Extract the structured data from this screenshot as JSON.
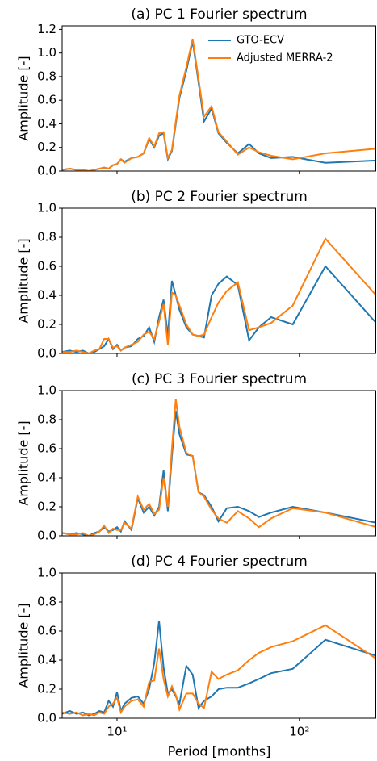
{
  "chart_data": [
    {
      "type": "line",
      "title": "(a) PC 1 Fourier spectrum",
      "ylabel": "Amplitude [-]",
      "log_x": true,
      "legend": "upper right",
      "xlim": [
        5,
        264
      ],
      "ylim": [
        0,
        1.23
      ],
      "yticks": [
        {
          "value": 0,
          "label": "0.0"
        },
        {
          "value": 0.2,
          "label": "0.2"
        },
        {
          "value": 0.4,
          "label": "0.4"
        },
        {
          "value": 0.6,
          "label": "0.6"
        },
        {
          "value": 0.8,
          "label": "0.8"
        },
        {
          "value": 1.0,
          "label": "1.0"
        },
        {
          "value": 1.2,
          "label": "1.2"
        }
      ],
      "x": [
        5,
        5.5,
        6,
        6.5,
        7,
        7.5,
        8,
        8.5,
        9,
        9.5,
        10,
        10.5,
        11,
        12,
        13,
        14,
        15,
        16,
        17,
        18,
        19,
        20,
        21,
        22,
        24,
        26,
        28,
        30,
        33,
        36,
        40,
        46,
        53,
        60,
        70,
        92,
        139,
        264
      ],
      "series": [
        {
          "name": "GTO-ECV",
          "color": "#1f77b4",
          "values": [
            0.01,
            0.02,
            0.01,
            0.01,
            0.0,
            0.01,
            0.02,
            0.03,
            0.02,
            0.05,
            0.06,
            0.1,
            0.08,
            0.11,
            0.12,
            0.15,
            0.27,
            0.2,
            0.3,
            0.32,
            0.1,
            0.17,
            0.4,
            0.62,
            0.85,
            1.1,
            0.75,
            0.42,
            0.53,
            0.32,
            0.24,
            0.15,
            0.23,
            0.15,
            0.11,
            0.12,
            0.07,
            0.09
          ]
        },
        {
          "name": "Adjusted MERRA-2",
          "color": "#ff7f0e",
          "values": [
            0.01,
            0.02,
            0.01,
            0.01,
            0.0,
            0.01,
            0.02,
            0.03,
            0.02,
            0.05,
            0.06,
            0.1,
            0.07,
            0.11,
            0.12,
            0.15,
            0.28,
            0.21,
            0.32,
            0.33,
            0.11,
            0.18,
            0.42,
            0.64,
            0.88,
            1.12,
            0.78,
            0.46,
            0.55,
            0.33,
            0.25,
            0.14,
            0.2,
            0.16,
            0.13,
            0.1,
            0.15,
            0.19
          ]
        }
      ]
    },
    {
      "type": "line",
      "title": "(b) PC 2 Fourier spectrum",
      "ylabel": "Amplitude [-]",
      "log_x": true,
      "xlim": [
        5,
        264
      ],
      "ylim": [
        0,
        1.0
      ],
      "yticks": [
        {
          "value": 0,
          "label": "0.0"
        },
        {
          "value": 0.2,
          "label": "0.2"
        },
        {
          "value": 0.4,
          "label": "0.4"
        },
        {
          "value": 0.6,
          "label": "0.6"
        },
        {
          "value": 0.8,
          "label": "0.8"
        },
        {
          "value": 1.0,
          "label": "1.0"
        }
      ],
      "x": [
        5,
        5.5,
        6,
        6.5,
        7,
        7.5,
        8,
        8.5,
        9,
        9.5,
        10,
        10.5,
        11,
        12,
        13,
        14,
        15,
        16,
        17,
        18,
        19,
        20,
        21,
        22,
        24,
        26,
        28,
        30,
        33,
        36,
        40,
        46,
        53,
        60,
        70,
        92,
        139,
        264
      ],
      "series": [
        {
          "name": "GTO-ECV",
          "color": "#1f77b4",
          "values": [
            0.01,
            0.02,
            0.01,
            0.02,
            0.0,
            0.01,
            0.03,
            0.05,
            0.1,
            0.03,
            0.06,
            0.02,
            0.04,
            0.05,
            0.1,
            0.12,
            0.18,
            0.08,
            0.25,
            0.37,
            0.12,
            0.5,
            0.4,
            0.3,
            0.18,
            0.13,
            0.12,
            0.11,
            0.4,
            0.48,
            0.53,
            0.47,
            0.09,
            0.18,
            0.25,
            0.2,
            0.6,
            0.21
          ]
        },
        {
          "name": "Adjusted MERRA-2",
          "color": "#ff7f0e",
          "values": [
            0.01,
            0.01,
            0.02,
            0.01,
            0.0,
            0.02,
            0.03,
            0.1,
            0.1,
            0.04,
            0.05,
            0.02,
            0.04,
            0.06,
            0.08,
            0.13,
            0.15,
            0.1,
            0.22,
            0.34,
            0.06,
            0.42,
            0.4,
            0.33,
            0.2,
            0.13,
            0.12,
            0.13,
            0.25,
            0.35,
            0.43,
            0.49,
            0.16,
            0.18,
            0.21,
            0.33,
            0.79,
            0.4
          ]
        }
      ]
    },
    {
      "type": "line",
      "title": "(c) PC 3 Fourier spectrum",
      "ylabel": "Amplitude [-]",
      "log_x": true,
      "xlim": [
        5,
        264
      ],
      "ylim": [
        0,
        1.0
      ],
      "yticks": [
        {
          "value": 0,
          "label": "0.0"
        },
        {
          "value": 0.2,
          "label": "0.2"
        },
        {
          "value": 0.4,
          "label": "0.4"
        },
        {
          "value": 0.6,
          "label": "0.6"
        },
        {
          "value": 0.8,
          "label": "0.8"
        },
        {
          "value": 1.0,
          "label": "1.0"
        }
      ],
      "x": [
        5,
        5.5,
        6,
        6.5,
        7,
        7.5,
        8,
        8.5,
        9,
        9.5,
        10,
        10.5,
        11,
        12,
        13,
        14,
        15,
        16,
        17,
        18,
        19,
        20,
        21,
        22,
        24,
        26,
        28,
        30,
        33,
        36,
        40,
        46,
        53,
        60,
        70,
        92,
        139,
        264
      ],
      "series": [
        {
          "name": "GTO-ECV",
          "color": "#1f77b4",
          "values": [
            0.02,
            0.01,
            0.02,
            0.01,
            0.0,
            0.02,
            0.03,
            0.06,
            0.03,
            0.04,
            0.06,
            0.03,
            0.1,
            0.04,
            0.26,
            0.16,
            0.2,
            0.14,
            0.2,
            0.45,
            0.17,
            0.55,
            0.86,
            0.7,
            0.56,
            0.55,
            0.3,
            0.28,
            0.2,
            0.1,
            0.19,
            0.2,
            0.17,
            0.13,
            0.16,
            0.2,
            0.16,
            0.09
          ]
        },
        {
          "name": "Adjusted MERRA-2",
          "color": "#ff7f0e",
          "values": [
            0.02,
            0.01,
            0.01,
            0.02,
            0.0,
            0.01,
            0.03,
            0.07,
            0.02,
            0.05,
            0.04,
            0.04,
            0.09,
            0.05,
            0.27,
            0.18,
            0.22,
            0.15,
            0.18,
            0.4,
            0.2,
            0.6,
            0.94,
            0.75,
            0.57,
            0.55,
            0.3,
            0.27,
            0.18,
            0.12,
            0.09,
            0.17,
            0.12,
            0.06,
            0.12,
            0.19,
            0.16,
            0.06
          ]
        }
      ]
    },
    {
      "type": "line",
      "title": "(d) PC 4 Fourier spectrum",
      "ylabel": "Amplitude [-]",
      "xlabel": "Period [months]",
      "log_x": true,
      "xlim": [
        5,
        264
      ],
      "ylim": [
        0,
        1.0
      ],
      "xticks": [
        {
          "value": 10,
          "label": "10¹"
        },
        {
          "value": 100,
          "label": "10²"
        }
      ],
      "yticks": [
        {
          "value": 0,
          "label": "0.0"
        },
        {
          "value": 0.2,
          "label": "0.2"
        },
        {
          "value": 0.4,
          "label": "0.4"
        },
        {
          "value": 0.6,
          "label": "0.6"
        },
        {
          "value": 0.8,
          "label": "0.8"
        },
        {
          "value": 1.0,
          "label": "1.0"
        }
      ],
      "x": [
        5,
        5.5,
        6,
        6.5,
        7,
        7.5,
        8,
        8.5,
        9,
        9.5,
        10,
        10.5,
        11,
        12,
        13,
        14,
        15,
        16,
        17,
        18,
        19,
        20,
        21,
        22,
        24,
        26,
        28,
        30,
        33,
        36,
        40,
        46,
        53,
        60,
        70,
        92,
        139,
        264
      ],
      "series": [
        {
          "name": "GTO-ECV",
          "color": "#1f77b4",
          "values": [
            0.03,
            0.05,
            0.03,
            0.04,
            0.02,
            0.03,
            0.05,
            0.04,
            0.12,
            0.08,
            0.18,
            0.05,
            0.1,
            0.14,
            0.15,
            0.1,
            0.2,
            0.38,
            0.67,
            0.35,
            0.17,
            0.2,
            0.15,
            0.1,
            0.36,
            0.3,
            0.07,
            0.12,
            0.15,
            0.2,
            0.21,
            0.21,
            0.24,
            0.27,
            0.31,
            0.34,
            0.54,
            0.43
          ]
        },
        {
          "name": "Adjusted MERRA-2",
          "color": "#ff7f0e",
          "values": [
            0.04,
            0.03,
            0.04,
            0.02,
            0.03,
            0.02,
            0.04,
            0.03,
            0.08,
            0.1,
            0.14,
            0.04,
            0.08,
            0.12,
            0.13,
            0.08,
            0.25,
            0.26,
            0.48,
            0.27,
            0.15,
            0.22,
            0.16,
            0.06,
            0.17,
            0.17,
            0.1,
            0.07,
            0.32,
            0.27,
            0.3,
            0.33,
            0.4,
            0.45,
            0.49,
            0.53,
            0.64,
            0.41
          ]
        }
      ]
    }
  ]
}
